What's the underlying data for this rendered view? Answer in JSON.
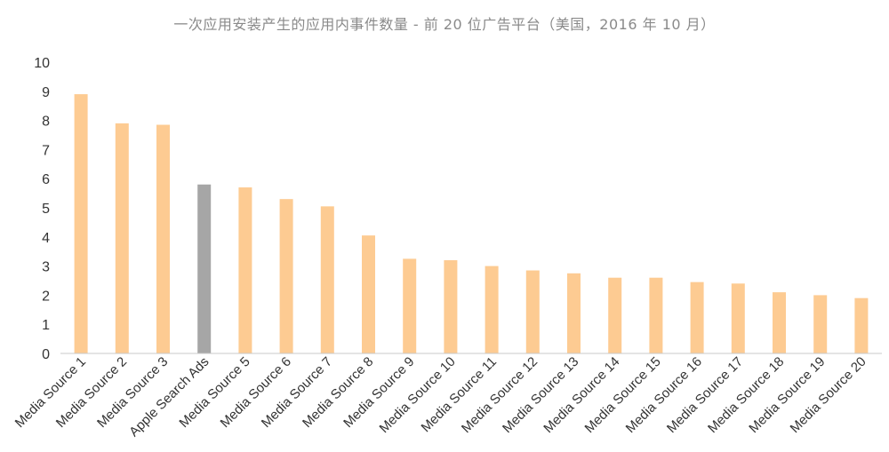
{
  "chart_data": {
    "type": "bar",
    "title": "一次应用安装产生的应用内事件数量 - 前 20 位广告平台（美国，2016 年 10 月）",
    "xlabel": "",
    "ylabel": "",
    "ylim": [
      0,
      10
    ],
    "yticks": [
      "0",
      "1",
      "2",
      "3",
      "4",
      "5",
      "6",
      "7",
      "8",
      "9",
      "10"
    ],
    "grid": false,
    "legend": "none",
    "categories": [
      "Media Source 1",
      "Media Source 2",
      "Media Source 3",
      "Apple Search Ads",
      "Media Source 5",
      "Media Source 6",
      "Media Source 7",
      "Media Source 8",
      "Media Source 9",
      "Media Source 10",
      "Media Source 11",
      "Media Source 12",
      "Media Source 13",
      "Media Source 14",
      "Media Source 15",
      "Media Source 16",
      "Media Source 17",
      "Media Source 18",
      "Media Source 19",
      "Media Source 20"
    ],
    "values": [
      8.9,
      7.9,
      7.85,
      5.8,
      5.7,
      5.3,
      5.05,
      4.05,
      3.25,
      3.2,
      3.0,
      2.85,
      2.75,
      2.6,
      2.6,
      2.45,
      2.4,
      2.1,
      2.0,
      1.9
    ],
    "highlight_category": "Apple Search Ads",
    "colors": {
      "bar": "#FDCB92",
      "highlight": "#A6A6A6",
      "axis": "#C8C8C8",
      "text": "#333333",
      "title": "#8A8A8A"
    }
  }
}
